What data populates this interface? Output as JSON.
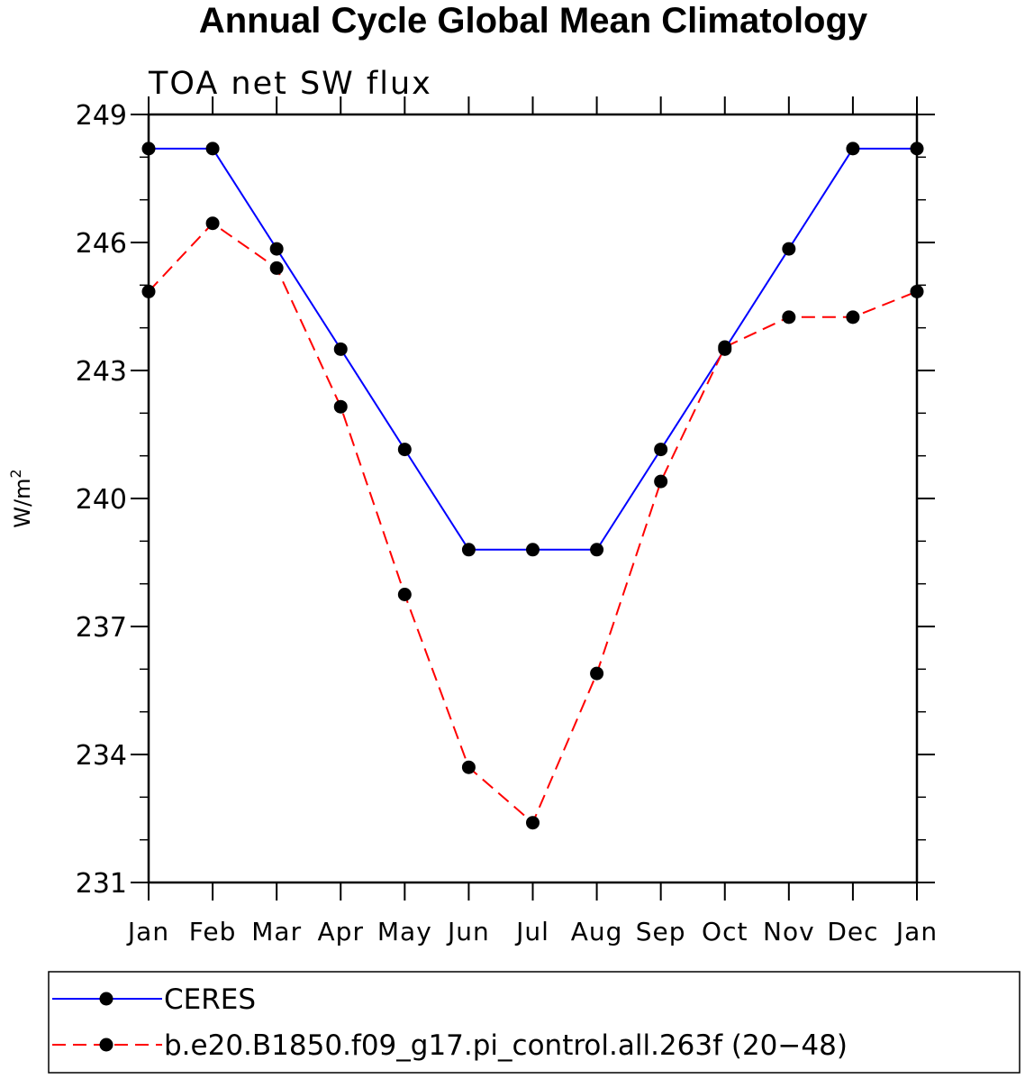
{
  "chart_data": {
    "type": "line",
    "title": "Annual Cycle Global Mean Climatology",
    "subtitle": "TOA net SW flux",
    "xlabel": "",
    "ylabel": "W/m",
    "ylabel_sup": "2",
    "categories": [
      "Jan",
      "Feb",
      "Mar",
      "Apr",
      "May",
      "Jun",
      "Jul",
      "Aug",
      "Sep",
      "Oct",
      "Nov",
      "Dec",
      "Jan"
    ],
    "ylim": [
      231,
      249
    ],
    "yticks": [
      249,
      246,
      243,
      240,
      237,
      234,
      231
    ],
    "series": [
      {
        "name": "CERES",
        "color": "#0000ff",
        "dash": "solid",
        "marker": "filled-circle",
        "values": [
          248.2,
          248.2,
          245.85,
          243.5,
          241.15,
          238.8,
          238.8,
          238.8,
          241.15,
          243.5,
          245.85,
          248.2,
          248.2
        ]
      },
      {
        "name": "b.e20.B1850.f09_g17.pi_control.all.263f (20−48)",
        "color": "#ff0000",
        "dash": "dashed",
        "marker": "filled-circle",
        "values": [
          244.85,
          246.45,
          245.4,
          242.15,
          237.75,
          233.7,
          232.4,
          235.9,
          240.4,
          243.55,
          244.25,
          244.25,
          244.85
        ]
      }
    ],
    "grid": false,
    "legend_position": "bottom"
  }
}
